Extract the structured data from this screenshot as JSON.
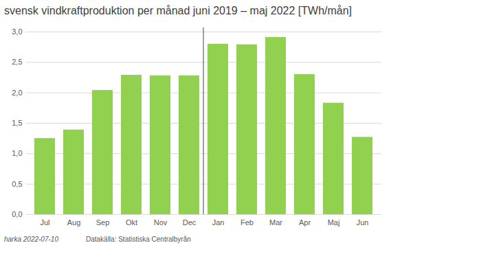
{
  "chart_data": {
    "type": "bar",
    "title": "svensk vindkraftproduktion per månad juni 2019 – maj 2022 [TWh/mån]",
    "categories": [
      "Jul",
      "Aug",
      "Sep",
      "Okt",
      "Nov",
      "Dec",
      "Jan",
      "Feb",
      "Mar",
      "Apr",
      "Maj",
      "Jun"
    ],
    "values": [
      1.25,
      1.39,
      2.04,
      2.29,
      2.28,
      2.28,
      2.8,
      2.79,
      2.91,
      2.3,
      1.83,
      1.27
    ],
    "color": "#92d050",
    "ylim": [
      0,
      3
    ],
    "yticks": [
      {
        "value": 0,
        "label": "0,0"
      },
      {
        "value": 0.5,
        "label": "0,5"
      },
      {
        "value": 1,
        "label": "1,0"
      },
      {
        "value": 1.5,
        "label": "1,5"
      },
      {
        "value": 2,
        "label": "2,0"
      },
      {
        "value": 2.5,
        "label": "2,5"
      },
      {
        "value": 3,
        "label": "3,0"
      }
    ],
    "grid": true,
    "annotations": [
      "harka 2022-07-10",
      "Datakälla: Statistiska Centralbyrån"
    ]
  }
}
